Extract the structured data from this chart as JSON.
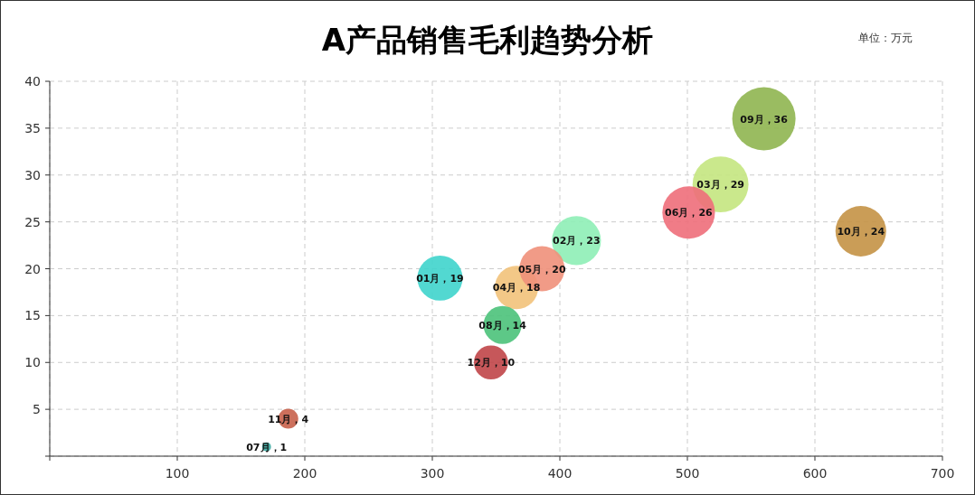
{
  "chart_data": {
    "type": "bubble",
    "title": "A产品销售毛利趋势分析",
    "annotations": [
      "单位：万元"
    ],
    "xlim": [
      0,
      700
    ],
    "xticks": [
      {
        "value": 0,
        "label": null
      },
      100,
      200,
      300,
      400,
      500,
      600,
      700
    ],
    "ylim": [
      0,
      40
    ],
    "yticks": [
      {
        "value": 0,
        "label": null
      },
      5,
      10,
      15,
      20,
      25,
      30,
      35,
      40
    ],
    "grid": true,
    "data_labels": true,
    "x": [
      306,
      413,
      526,
      366,
      386,
      501,
      170,
      355,
      560,
      636,
      187,
      346
    ],
    "values": [
      19,
      23,
      29,
      18,
      20,
      26,
      1,
      14,
      36,
      24,
      4,
      10
    ],
    "sizes": [
      0.51,
      0.6,
      0.78,
      0.47,
      0.51,
      0.69,
      0.02,
      0.36,
      1,
      0.64,
      0.1,
      0.29
    ],
    "value_labels": [
      "01月，19",
      "02月，23",
      "03月，29",
      "04月，18",
      "05月，20",
      "06月，26",
      "07月，1",
      "08月，14",
      "09月，36",
      "10月，24",
      "11月，4",
      "12月，10"
    ],
    "colors": [
      "#3fd4cc",
      "#8eeeb6",
      "#c4e57f",
      "#f2c27a",
      "#f0907a",
      "#ee6e7a",
      "#3aa8a0",
      "#4bc27a",
      "#8fb550",
      "#c49245",
      "#c8604a",
      "#c04548"
    ]
  }
}
